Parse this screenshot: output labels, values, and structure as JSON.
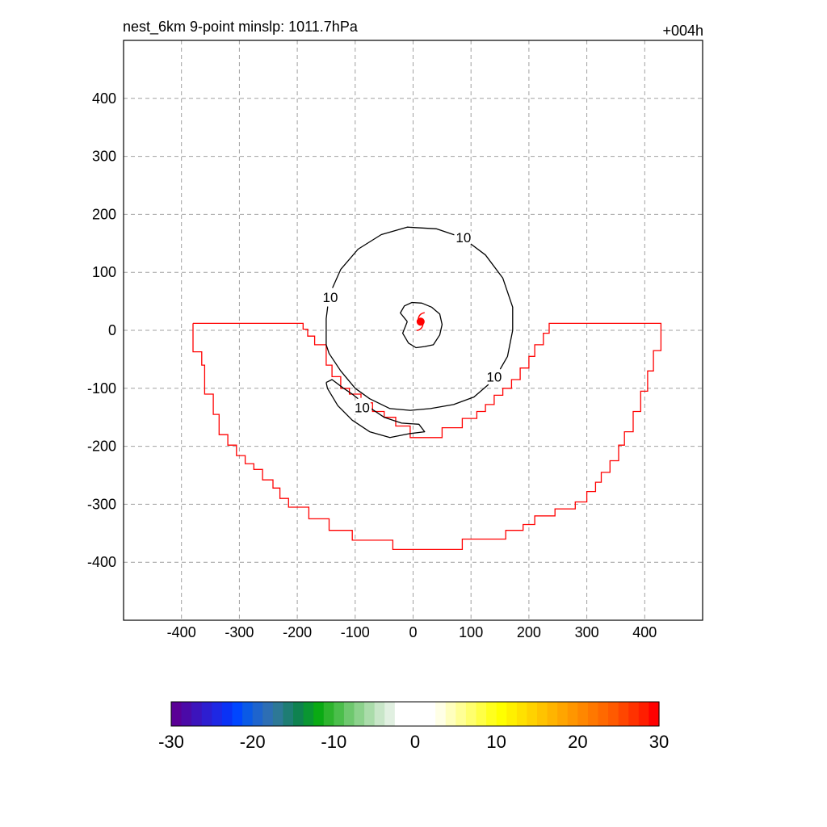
{
  "chart_data": {
    "type": "contour",
    "title_left": "nest_6km  9-point minslp: 1011.7hPa",
    "title_right": "+004h",
    "xlim": [
      -500,
      500
    ],
    "ylim": [
      -500,
      500
    ],
    "x_ticks": [
      -400,
      -300,
      -200,
      -100,
      0,
      100,
      200,
      300,
      400
    ],
    "y_ticks": [
      400,
      300,
      200,
      100,
      0,
      -100,
      -200,
      -300,
      -400
    ],
    "grid": true,
    "storm_center": [
      13,
      15
    ],
    "contour_level_label": "10",
    "contour_labels": [
      {
        "text": "10",
        "x": 87,
        "y": 160
      },
      {
        "text": "10",
        "x": -143,
        "y": 57
      },
      {
        "text": "10",
        "x": 140,
        "y": -80
      },
      {
        "text": "10",
        "x": -88,
        "y": -133
      }
    ],
    "contours": [
      [
        [
          -150,
          -25
        ],
        [
          -150,
          20
        ],
        [
          -145,
          60
        ],
        [
          -125,
          105
        ],
        [
          -95,
          140
        ],
        [
          -55,
          165
        ],
        [
          -10,
          178
        ],
        [
          40,
          175
        ],
        [
          85,
          160
        ],
        [
          125,
          130
        ],
        [
          155,
          90
        ],
        [
          172,
          40
        ],
        [
          172,
          0
        ],
        [
          163,
          -45
        ],
        [
          140,
          -85
        ],
        [
          105,
          -115
        ],
        [
          70,
          -128
        ],
        [
          30,
          -135
        ],
        [
          -5,
          -138
        ],
        [
          -40,
          -135
        ],
        [
          -75,
          -118
        ],
        [
          -100,
          -100
        ],
        [
          -125,
          -70
        ],
        [
          -145,
          -40
        ],
        [
          -150,
          -25
        ]
      ],
      [
        [
          -10,
          15
        ],
        [
          -22,
          30
        ],
        [
          -15,
          42
        ],
        [
          -2,
          48
        ],
        [
          15,
          47
        ],
        [
          32,
          40
        ],
        [
          46,
          28
        ],
        [
          50,
          10
        ],
        [
          46,
          -8
        ],
        [
          35,
          -25
        ],
        [
          20,
          -28
        ],
        [
          5,
          -30
        ],
        [
          -8,
          -22
        ],
        [
          -18,
          -5
        ],
        [
          -10,
          15
        ]
      ],
      [
        [
          -150,
          -90
        ],
        [
          -140,
          -85
        ],
        [
          -120,
          -100
        ],
        [
          -105,
          -110
        ],
        [
          -80,
          -130
        ],
        [
          -50,
          -150
        ],
        [
          -20,
          -160
        ],
        [
          10,
          -162
        ],
        [
          20,
          -175
        ],
        [
          -5,
          -178
        ],
        [
          -40,
          -185
        ],
        [
          -75,
          -175
        ],
        [
          -105,
          -155
        ],
        [
          -130,
          -130
        ],
        [
          -148,
          -100
        ],
        [
          -150,
          -90
        ]
      ]
    ],
    "land_boundary": [
      [
        -380,
        12
      ],
      [
        -190,
        12
      ],
      [
        -190,
        2
      ],
      [
        -182,
        2
      ],
      [
        -182,
        -10
      ],
      [
        -170,
        -10
      ],
      [
        -170,
        -25
      ],
      [
        -150,
        -25
      ],
      [
        -150,
        -60
      ],
      [
        -140,
        -60
      ],
      [
        -140,
        -80
      ],
      [
        -125,
        -80
      ],
      [
        -125,
        -100
      ],
      [
        -110,
        -100
      ],
      [
        -110,
        -110
      ],
      [
        -90,
        -110
      ],
      [
        -90,
        -125
      ],
      [
        -70,
        -125
      ],
      [
        -70,
        -140
      ],
      [
        -50,
        -140
      ],
      [
        -50,
        -150
      ],
      [
        -30,
        -150
      ],
      [
        -30,
        -165
      ],
      [
        -5,
        -165
      ],
      [
        -5,
        -185
      ],
      [
        50,
        -185
      ],
      [
        50,
        -168
      ],
      [
        85,
        -168
      ],
      [
        85,
        -152
      ],
      [
        110,
        -152
      ],
      [
        110,
        -140
      ],
      [
        125,
        -140
      ],
      [
        125,
        -128
      ],
      [
        140,
        -128
      ],
      [
        140,
        -112
      ],
      [
        155,
        -112
      ],
      [
        155,
        -100
      ],
      [
        170,
        -100
      ],
      [
        170,
        -85
      ],
      [
        185,
        -85
      ],
      [
        185,
        -65
      ],
      [
        200,
        -65
      ],
      [
        200,
        -45
      ],
      [
        210,
        -45
      ],
      [
        210,
        -25
      ],
      [
        225,
        -25
      ],
      [
        225,
        -5
      ],
      [
        235,
        -5
      ],
      [
        235,
        12
      ],
      [
        428,
        12
      ],
      [
        428,
        -35
      ],
      [
        415,
        -35
      ],
      [
        415,
        -70
      ],
      [
        405,
        -70
      ],
      [
        405,
        -105
      ],
      [
        393,
        -105
      ],
      [
        393,
        -140
      ],
      [
        380,
        -140
      ],
      [
        380,
        -175
      ],
      [
        365,
        -175
      ],
      [
        365,
        -198
      ],
      [
        355,
        -198
      ],
      [
        355,
        -225
      ],
      [
        340,
        -225
      ],
      [
        340,
        -245
      ],
      [
        325,
        -245
      ],
      [
        325,
        -262
      ],
      [
        315,
        -262
      ],
      [
        315,
        -278
      ],
      [
        300,
        -278
      ],
      [
        300,
        -296
      ],
      [
        280,
        -296
      ],
      [
        280,
        -308
      ],
      [
        245,
        -308
      ],
      [
        245,
        -320
      ],
      [
        210,
        -320
      ],
      [
        210,
        -335
      ],
      [
        190,
        -335
      ],
      [
        190,
        -345
      ],
      [
        160,
        -345
      ],
      [
        160,
        -360
      ],
      [
        85,
        -360
      ],
      [
        85,
        -378
      ],
      [
        -35,
        -378
      ],
      [
        -35,
        -362
      ],
      [
        -105,
        -362
      ],
      [
        -105,
        -345
      ],
      [
        -145,
        -345
      ],
      [
        -145,
        -325
      ],
      [
        -180,
        -325
      ],
      [
        -180,
        -305
      ],
      [
        -215,
        -305
      ],
      [
        -215,
        -290
      ],
      [
        -230,
        -290
      ],
      [
        -230,
        -272
      ],
      [
        -242,
        -272
      ],
      [
        -242,
        -258
      ],
      [
        -260,
        -258
      ],
      [
        -260,
        -240
      ],
      [
        -275,
        -240
      ],
      [
        -275,
        -230
      ],
      [
        -290,
        -230
      ],
      [
        -290,
        -216
      ],
      [
        -305,
        -216
      ],
      [
        -305,
        -198
      ],
      [
        -320,
        -198
      ],
      [
        -320,
        -180
      ],
      [
        -335,
        -180
      ],
      [
        -335,
        -145
      ],
      [
        -345,
        -145
      ],
      [
        -345,
        -110
      ],
      [
        -360,
        -110
      ],
      [
        -360,
        -60
      ],
      [
        -365,
        -60
      ],
      [
        -365,
        -37
      ],
      [
        -380,
        -37
      ],
      [
        -380,
        12
      ]
    ],
    "colorbar": {
      "min": -30,
      "max": 30,
      "tick_labels": [
        "-30",
        "-20",
        "-10",
        "0",
        "10",
        "20",
        "30"
      ],
      "colors": [
        "#5a0096",
        "#4b0aa8",
        "#3c14bc",
        "#2d1ed0",
        "#1e28e4",
        "#0a32f5",
        "#0046ff",
        "#0a5ae6",
        "#1e64cd",
        "#2d6eb4",
        "#2d7896",
        "#1e7d73",
        "#0f8250",
        "#0a9632",
        "#0aaa14",
        "#2db42d",
        "#4bbe4b",
        "#6ec86e",
        "#8cd28c",
        "#aadcaa",
        "#c8e6c8",
        "#e1f0e1",
        "#ffffff",
        "#ffffff",
        "#ffffff",
        "#ffffff",
        "#ffffe6",
        "#ffffbe",
        "#ffff96",
        "#ffff6e",
        "#ffff46",
        "#ffff1e",
        "#ffff00",
        "#fff000",
        "#ffe100",
        "#ffd200",
        "#ffc300",
        "#ffb400",
        "#ffa500",
        "#ff9600",
        "#ff8700",
        "#ff7800",
        "#ff6900",
        "#ff5a00",
        "#ff4600",
        "#ff3200",
        "#ff1e00",
        "#ff0000"
      ]
    },
    "colors": {
      "contour": "#000000",
      "land_boundary": "#ff0000",
      "storm_symbol": "#ff0000",
      "grid": "#a0a0a0"
    }
  }
}
